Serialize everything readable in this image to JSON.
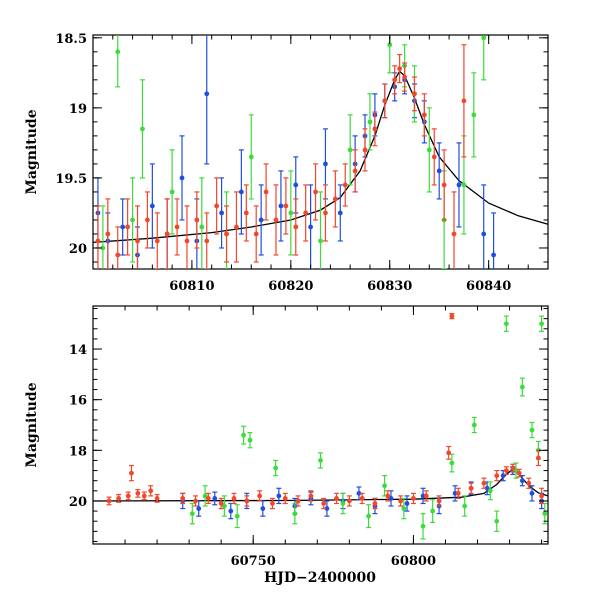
{
  "chart_data": [
    {
      "type": "scatter",
      "panel": "top",
      "title": "",
      "xlabel": "",
      "ylabel": "Magnitude",
      "xlim": [
        60800,
        60846
      ],
      "ylim": [
        20.15,
        18.48
      ],
      "y_inverted": true,
      "x_ticks": [
        60810,
        60820,
        60830,
        60840
      ],
      "y_ticks": [
        18.5,
        19,
        19.5,
        20
      ],
      "y_tick_labels": [
        "18.5",
        "19",
        "19.5",
        "20"
      ],
      "grid": false,
      "legend": "none",
      "model_curve": {
        "name": "",
        "color": "#000000",
        "x": [
          60800,
          60806,
          60812,
          60816,
          60820,
          60823,
          60825,
          60827,
          60828.5,
          60829.5,
          60830.5,
          60831,
          60831.5,
          60832.5,
          60833.5,
          60835,
          60837,
          60840,
          60843,
          60846
        ],
        "y": [
          19.96,
          19.93,
          19.89,
          19.85,
          19.8,
          19.73,
          19.64,
          19.45,
          19.2,
          18.98,
          18.8,
          18.74,
          18.77,
          18.93,
          19.12,
          19.35,
          19.52,
          19.68,
          19.77,
          19.83
        ]
      },
      "series": [
        {
          "name": "",
          "color": "#1f4fe0",
          "x": [
            60800.5,
            60801.5,
            60803,
            60804.5,
            60806,
            60807.5,
            60809,
            60810.5,
            60811.5,
            60813,
            60815,
            60817,
            60819,
            60820.5,
            60822,
            60823.5,
            60825,
            60826.5,
            60827.5,
            60828.5,
            60829.5,
            60830.5,
            60831.5,
            60832.5,
            60833.5,
            60835,
            60837,
            60839.5,
            60840.5
          ],
          "y": [
            19.75,
            19.95,
            19.85,
            20.05,
            19.7,
            19.9,
            19.5,
            19.95,
            18.9,
            19.75,
            19.6,
            19.8,
            19.7,
            19.55,
            19.85,
            19.4,
            19.75,
            19.4,
            19.2,
            19.05,
            18.95,
            18.85,
            18.8,
            18.95,
            19.1,
            19.45,
            19.55,
            19.9,
            20.05
          ],
          "err": [
            0.25,
            0.2,
            0.2,
            0.2,
            0.3,
            0.25,
            0.3,
            0.3,
            0.5,
            0.25,
            0.3,
            0.25,
            0.25,
            0.2,
            0.3,
            0.25,
            0.2,
            0.2,
            0.15,
            0.15,
            0.12,
            0.1,
            0.1,
            0.12,
            0.15,
            0.2,
            0.3,
            0.35,
            0.3
          ]
        },
        {
          "name": "",
          "color": "#3ddc3d",
          "x": [
            60801,
            60802.5,
            60804,
            60805,
            60808,
            60811,
            60813.5,
            60816,
            60820,
            60823,
            60826,
            60828,
            60830,
            60831.5,
            60832.5,
            60834,
            60835.5,
            60837.5,
            60838.5,
            60839.5
          ],
          "y": [
            20.0,
            18.6,
            19.8,
            19.15,
            19.6,
            19.85,
            19.9,
            19.35,
            19.75,
            19.95,
            19.3,
            19.1,
            18.55,
            18.7,
            18.9,
            19.3,
            19.8,
            19.55,
            19.05,
            18.5
          ],
          "err": [
            0.3,
            0.25,
            0.3,
            0.35,
            0.3,
            0.35,
            0.3,
            0.3,
            0.3,
            0.35,
            0.25,
            0.2,
            0.2,
            0.15,
            0.2,
            0.3,
            0.35,
            0.35,
            0.3,
            0.3
          ]
        },
        {
          "name": "",
          "color": "#f2472a",
          "x": [
            60800.5,
            60801.5,
            60802.5,
            60803.5,
            60804.5,
            60805.5,
            60806.5,
            60807.5,
            60808.5,
            60809.5,
            60810.5,
            60811.5,
            60812.5,
            60813.5,
            60814.5,
            60815.5,
            60816.5,
            60817.5,
            60818.5,
            60819.5,
            60820.5,
            60821.5,
            60822.5,
            60823.5,
            60824.5,
            60825.5,
            60826.5,
            60827.5,
            60828.5,
            60829.5,
            60830.5,
            60831,
            60831.5,
            60832.5,
            60833.5,
            60834.5,
            60835.5,
            60836.5,
            60837.5
          ],
          "y": [
            19.95,
            19.9,
            20.05,
            19.85,
            19.95,
            19.8,
            19.95,
            19.9,
            19.85,
            19.95,
            19.8,
            19.95,
            19.7,
            19.9,
            19.85,
            19.75,
            19.9,
            19.6,
            19.8,
            19.7,
            19.85,
            19.75,
            19.6,
            19.75,
            19.65,
            19.55,
            19.45,
            19.3,
            19.15,
            18.95,
            18.8,
            18.72,
            18.78,
            18.9,
            19.05,
            19.35,
            19.55,
            19.9,
            18.95
          ],
          "err": [
            0.25,
            0.25,
            0.2,
            0.2,
            0.25,
            0.2,
            0.2,
            0.25,
            0.2,
            0.25,
            0.2,
            0.2,
            0.2,
            0.2,
            0.25,
            0.2,
            0.2,
            0.2,
            0.25,
            0.2,
            0.2,
            0.2,
            0.2,
            0.2,
            0.2,
            0.15,
            0.15,
            0.15,
            0.12,
            0.12,
            0.1,
            0.1,
            0.1,
            0.12,
            0.15,
            0.2,
            0.25,
            0.3,
            0.4
          ]
        }
      ]
    },
    {
      "type": "scatter",
      "panel": "bottom",
      "title": "",
      "xlabel": "HJD−2400000",
      "ylabel": "Magnitude",
      "xlim": [
        60700,
        60842
      ],
      "ylim": [
        21.7,
        12.3
      ],
      "y_inverted": true,
      "x_ticks": [
        60750,
        60800
      ],
      "y_ticks": [
        14,
        16,
        18,
        20
      ],
      "y_tick_labels": [
        "14",
        "16",
        "18",
        "20"
      ],
      "grid": false,
      "legend": "none",
      "model_curve": {
        "name": "",
        "color": "#000000",
        "x": [
          60700,
          60760,
          60800,
          60815,
          60822,
          60826,
          60829,
          60831,
          60833,
          60836,
          60839,
          60842
        ],
        "y": [
          20.0,
          19.98,
          19.93,
          19.85,
          19.7,
          19.35,
          18.95,
          18.74,
          18.95,
          19.4,
          19.68,
          19.8
        ]
      },
      "series": [
        {
          "name": "",
          "color": "#1f4fe0",
          "x": [
            60728,
            60733,
            60738,
            60743,
            60748,
            60753,
            60758,
            60763,
            60768,
            60773,
            60778,
            60783,
            60788,
            60793,
            60798,
            60803,
            60808,
            60813,
            60818,
            60823,
            60828,
            60831,
            60834,
            60837,
            60840
          ],
          "y": [
            20.0,
            20.3,
            19.9,
            20.4,
            20.0,
            20.3,
            19.8,
            20.2,
            19.9,
            20.3,
            20.0,
            19.7,
            20.2,
            19.9,
            20.1,
            19.8,
            20.2,
            19.7,
            19.5,
            19.5,
            19.0,
            18.8,
            19.2,
            19.7,
            20.0
          ],
          "err": [
            0.3,
            0.3,
            0.25,
            0.3,
            0.3,
            0.3,
            0.3,
            0.3,
            0.25,
            0.3,
            0.3,
            0.25,
            0.3,
            0.3,
            0.3,
            0.3,
            0.3,
            0.3,
            0.25,
            0.25,
            0.2,
            0.15,
            0.2,
            0.3,
            0.3
          ]
        },
        {
          "name": "",
          "color": "#3ddc3d",
          "x": [
            60731,
            60735,
            60741,
            60745,
            60747,
            60749,
            60757,
            60763,
            60771,
            60778,
            60786,
            60791,
            60797,
            60803,
            60806,
            60812,
            60816,
            60819,
            60824,
            60826,
            60829,
            60832,
            60834,
            60837,
            60839,
            60840,
            60841
          ],
          "y": [
            20.5,
            19.8,
            20.2,
            20.6,
            17.4,
            17.6,
            18.7,
            20.5,
            18.4,
            20.1,
            20.6,
            19.4,
            20.3,
            21.0,
            20.4,
            18.5,
            20.2,
            17.0,
            19.6,
            20.8,
            13.0,
            18.8,
            15.5,
            17.2,
            18.0,
            13.0,
            20.5
          ],
          "err": [
            0.4,
            0.4,
            0.4,
            0.45,
            0.35,
            0.3,
            0.3,
            0.4,
            0.3,
            0.4,
            0.45,
            0.4,
            0.4,
            0.5,
            0.45,
            0.35,
            0.4,
            0.3,
            0.35,
            0.4,
            0.3,
            0.3,
            0.35,
            0.3,
            0.35,
            0.3,
            0.4
          ]
        },
        {
          "name": "",
          "color": "#f2472a",
          "x": [
            60705,
            60708,
            60711,
            60712,
            60714,
            60716,
            60718,
            60720,
            60728,
            60732,
            60736,
            60740,
            60744,
            60748,
            60752,
            60756,
            60760,
            60764,
            60768,
            60772,
            60776,
            60780,
            60784,
            60788,
            60792,
            60796,
            60800,
            60804,
            60808,
            60811,
            60812,
            60814,
            60818,
            60822,
            60826,
            60829,
            60831,
            60833,
            60836,
            60839,
            60840
          ],
          "y": [
            20.0,
            19.9,
            19.8,
            18.9,
            19.7,
            19.8,
            19.6,
            19.9,
            19.9,
            20.0,
            19.9,
            20.1,
            19.9,
            20.0,
            19.8,
            20.1,
            19.9,
            20.0,
            19.8,
            20.1,
            19.9,
            20.0,
            19.9,
            20.1,
            19.8,
            20.0,
            19.9,
            19.8,
            20.0,
            18.1,
            12.7,
            19.7,
            19.5,
            19.3,
            19.0,
            18.8,
            18.7,
            18.9,
            19.3,
            18.3,
            19.8
          ],
          "err": [
            0.15,
            0.15,
            0.15,
            0.3,
            0.15,
            0.15,
            0.2,
            0.15,
            0.2,
            0.2,
            0.2,
            0.2,
            0.2,
            0.2,
            0.2,
            0.2,
            0.2,
            0.2,
            0.2,
            0.2,
            0.2,
            0.2,
            0.2,
            0.2,
            0.2,
            0.2,
            0.2,
            0.2,
            0.2,
            0.25,
            0.1,
            0.2,
            0.2,
            0.2,
            0.2,
            0.15,
            0.15,
            0.15,
            0.2,
            0.3,
            0.3
          ]
        }
      ]
    }
  ]
}
